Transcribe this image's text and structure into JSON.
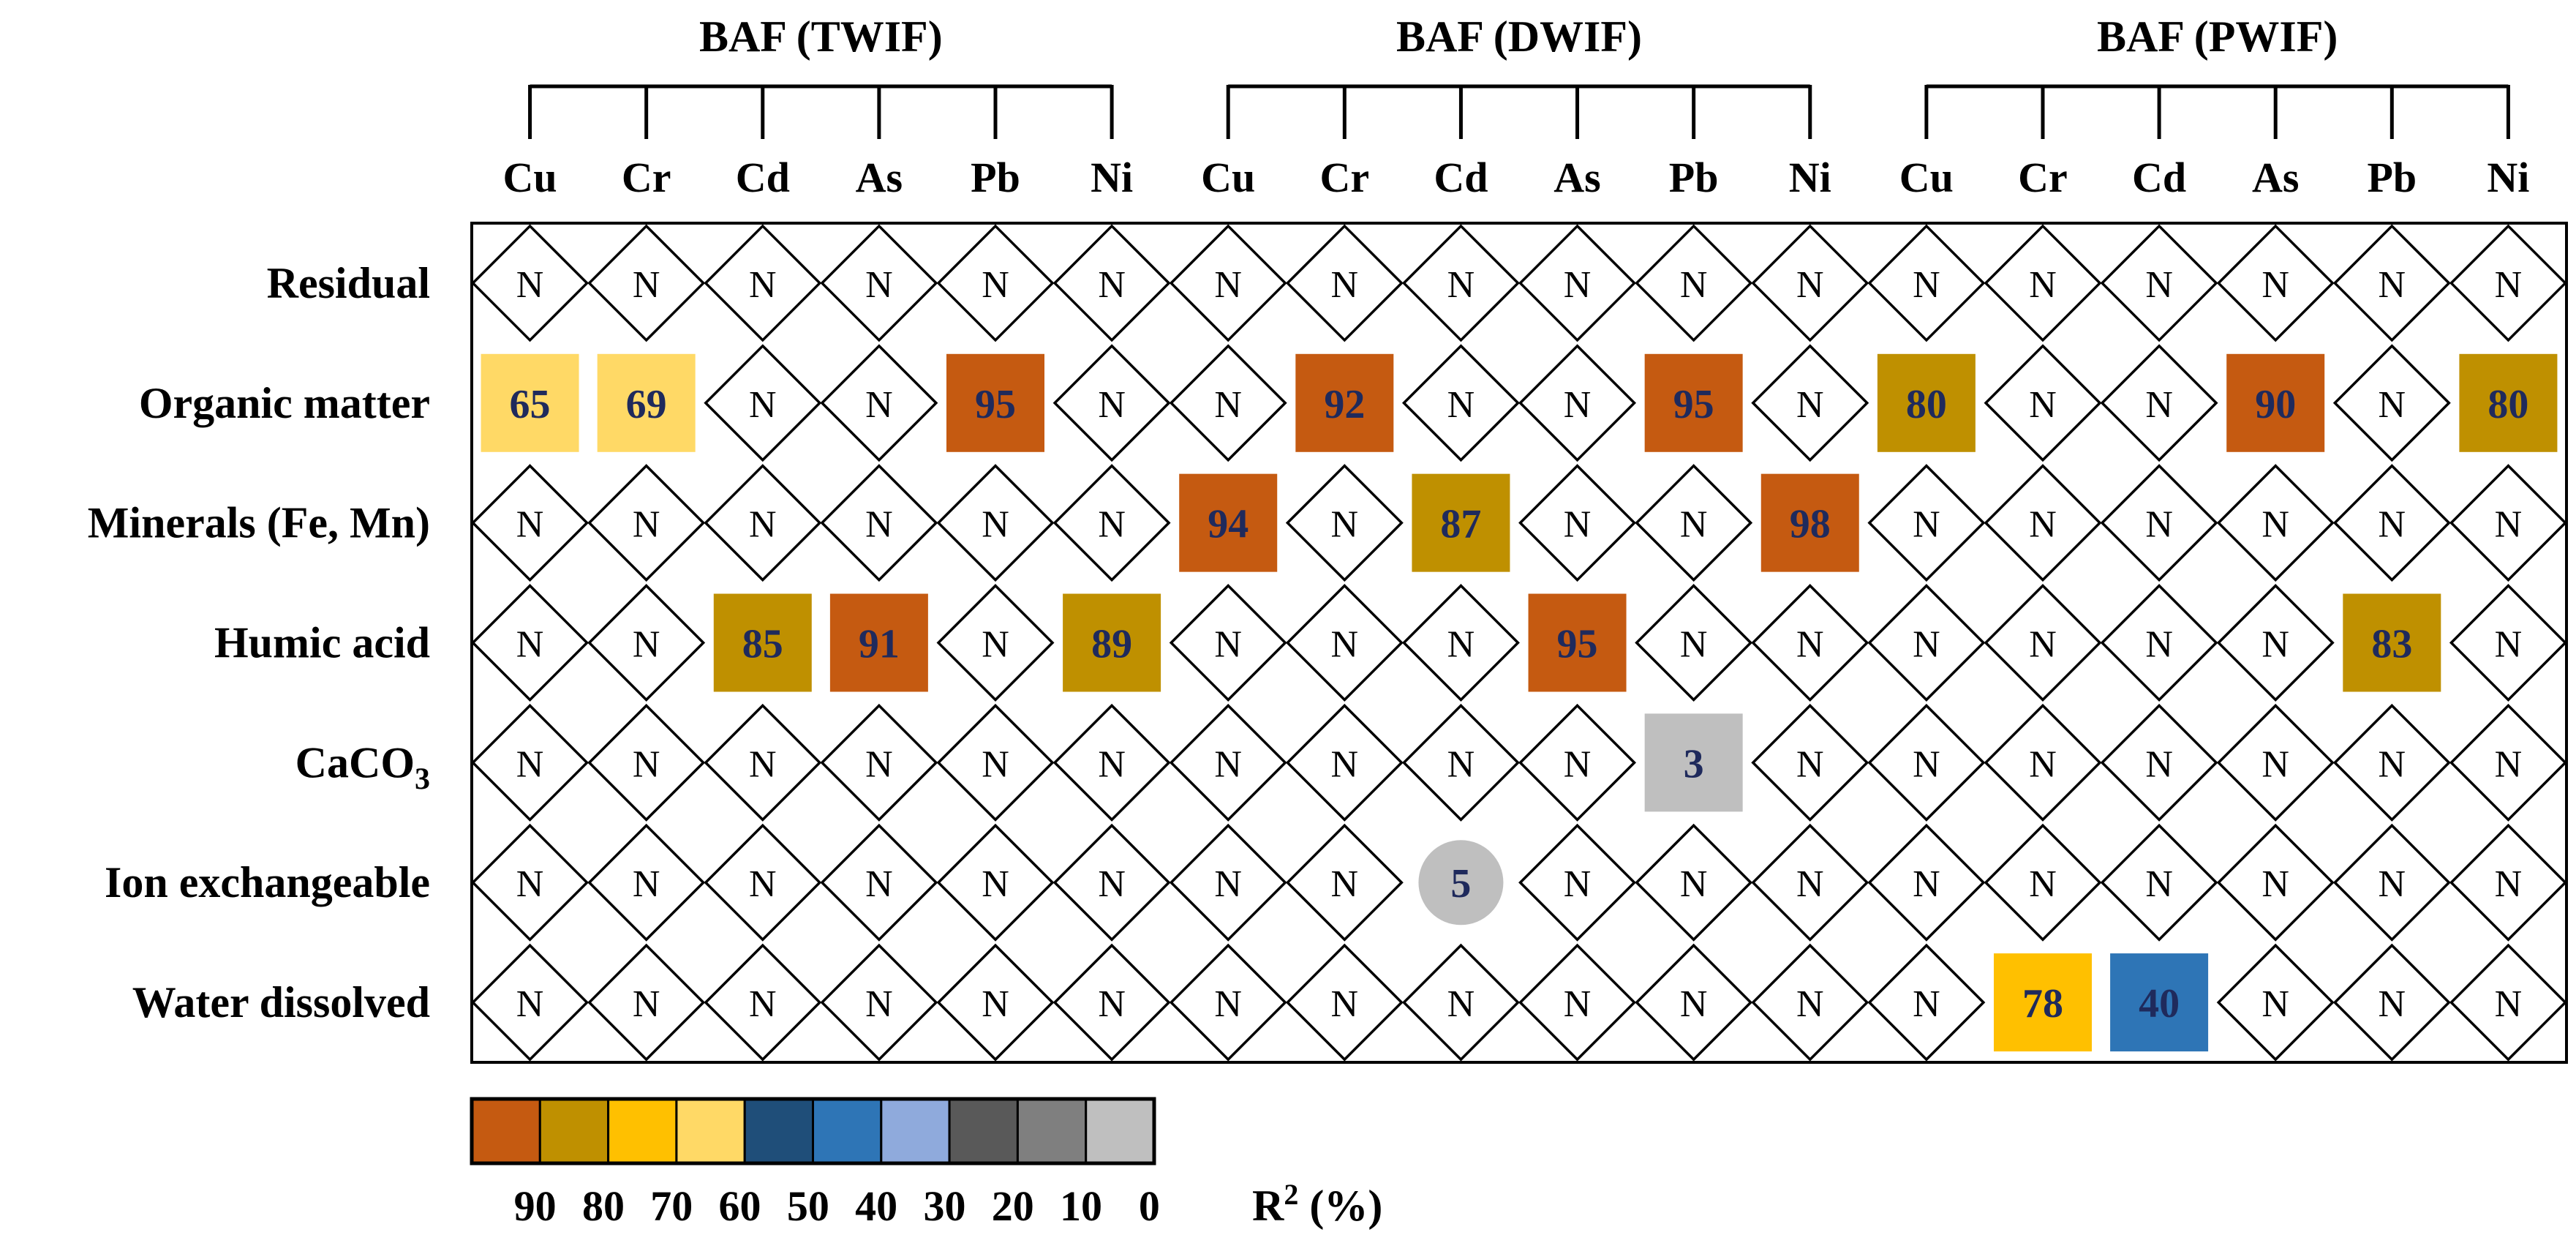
{
  "chart_data": {
    "type": "heatmap",
    "title": "",
    "groups": [
      {
        "name": "BAF (TWIF)",
        "metals": [
          "Cu",
          "Cr",
          "Cd",
          "As",
          "Pb",
          "Ni"
        ]
      },
      {
        "name": "BAF (DWIF)",
        "metals": [
          "Cu",
          "Cr",
          "Cd",
          "As",
          "Pb",
          "Ni"
        ]
      },
      {
        "name": "BAF (PWIF)",
        "metals": [
          "Cu",
          "Cr",
          "Cd",
          "As",
          "Pb",
          "Ni"
        ]
      }
    ],
    "rows": [
      {
        "label": "Residual",
        "sub": ""
      },
      {
        "label": "Organic matter",
        "sub": ""
      },
      {
        "label": "Minerals (Fe, Mn)",
        "sub": ""
      },
      {
        "label": "Humic acid",
        "sub": ""
      },
      {
        "label": "CaCO",
        "sub": "3"
      },
      {
        "label": "Ion exchangeable",
        "sub": ""
      },
      {
        "label": "Water dissolved",
        "sub": ""
      }
    ],
    "not_significant_label": "N",
    "values": [
      [
        null,
        null,
        null,
        null,
        null,
        null,
        null,
        null,
        null,
        null,
        null,
        null,
        null,
        null,
        null,
        null,
        null,
        null
      ],
      [
        65,
        69,
        null,
        null,
        95,
        null,
        null,
        92,
        null,
        null,
        95,
        null,
        80,
        null,
        null,
        90,
        null,
        80
      ],
      [
        null,
        null,
        null,
        null,
        null,
        null,
        94,
        null,
        87,
        null,
        null,
        98,
        null,
        null,
        null,
        null,
        null,
        null
      ],
      [
        null,
        null,
        85,
        91,
        null,
        89,
        null,
        null,
        null,
        95,
        null,
        null,
        null,
        null,
        null,
        null,
        83,
        null
      ],
      [
        null,
        null,
        null,
        null,
        null,
        null,
        null,
        null,
        null,
        null,
        3,
        null,
        null,
        null,
        null,
        null,
        null,
        null
      ],
      [
        null,
        null,
        null,
        null,
        null,
        null,
        null,
        null,
        5,
        null,
        null,
        null,
        null,
        null,
        null,
        null,
        null,
        null
      ],
      [
        null,
        null,
        null,
        null,
        null,
        null,
        null,
        null,
        null,
        null,
        null,
        null,
        null,
        78,
        40,
        null,
        null,
        null
      ]
    ],
    "circle_cells": [
      [
        5,
        8
      ]
    ],
    "legend": {
      "title": "R",
      "title_sup": "2",
      "title_unit": " (%)",
      "swatch_colors": [
        "#c55a11",
        "#bf9000",
        "#ffc000",
        "#ffd966",
        "#1f4e79",
        "#2e75b6",
        "#8faadc",
        "#595959",
        "#7f7f7f",
        "#bfbfbf"
      ],
      "tick_labels": [
        "90",
        "80",
        "70",
        "60",
        "50",
        "40",
        "30",
        "20",
        "10",
        "0"
      ]
    },
    "color_scale": [
      {
        "min": 90,
        "color": "#c55a11"
      },
      {
        "min": 80,
        "color": "#bf9000"
      },
      {
        "min": 70,
        "color": "#ffc000"
      },
      {
        "min": 60,
        "color": "#ffd966"
      },
      {
        "min": 50,
        "color": "#1f4e79"
      },
      {
        "min": 40,
        "color": "#2e75b6"
      },
      {
        "min": 30,
        "color": "#8faadc"
      },
      {
        "min": 20,
        "color": "#595959"
      },
      {
        "min": 10,
        "color": "#7f7f7f"
      },
      {
        "min": 0,
        "color": "#bfbfbf"
      }
    ],
    "value_text_color": "#1f2a5c"
  }
}
